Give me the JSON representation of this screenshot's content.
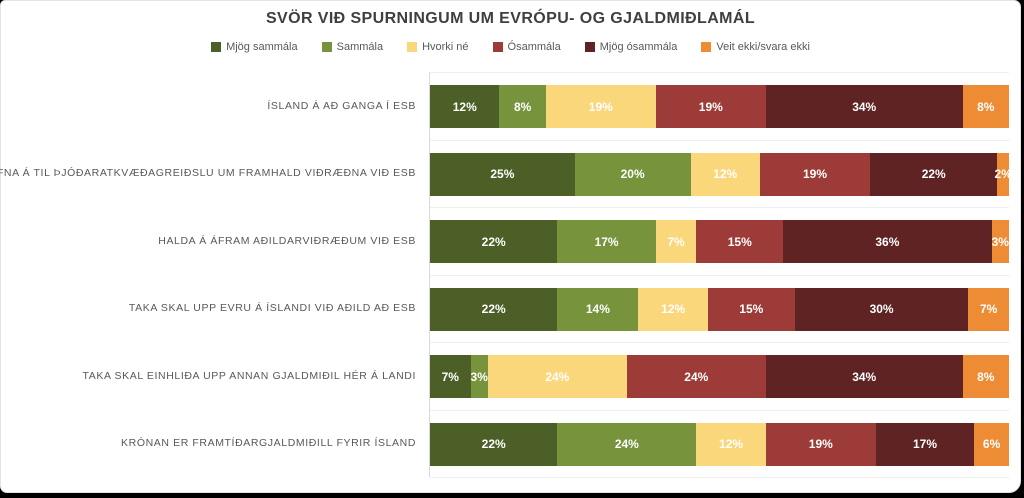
{
  "title": "SVÖR VIÐ SPURNINGUM UM EVRÓPU- OG GJALDMIÐLAMÁL",
  "colors": {
    "title_text": "#3F3F3F",
    "category_label_text": "#595959",
    "value_label_text": "#FFFFFF",
    "axis_line": "#D9D9D9",
    "gridline": "#EFEFEF",
    "background": "#FFFFFF"
  },
  "chart_data": {
    "type": "bar",
    "stacked": true,
    "orientation": "horizontal",
    "unit": "%",
    "xlim": [
      0,
      100
    ],
    "grid": "category-separators",
    "legend_position": "top",
    "title": "SVÖR VIÐ SPURNINGUM UM EVRÓPU- OG GJALDMIÐLAMÁL",
    "xlabel": "",
    "ylabel": "",
    "categories": [
      "ÍSLAND Á AÐ GANGA Í ESB",
      "EFNA Á TIL ÞJÓÐARATKVÆÐAGREIÐSLU UM FRAMHALD VIÐRÆÐNA VIÐ ESB",
      "HALDA Á ÁFRAM AÐILDARVIÐRÆÐUM VIÐ ESB",
      "TAKA SKAL UPP EVRU Á ÍSLANDI VIÐ AÐILD AÐ ESB",
      "TAKA SKAL EINHLIÐA UPP ANNAN GJALDMIÐIL HÉR Á LANDI",
      "KRÓNAN ER FRAMTÍÐARGJALDMIÐILL FYRIR ÍSLAND"
    ],
    "series": [
      {
        "name": "Mjög sammála",
        "color": "#4C5F26",
        "values": [
          12,
          25,
          22,
          22,
          7,
          22
        ]
      },
      {
        "name": "Sammála",
        "color": "#77933C",
        "values": [
          8,
          20,
          17,
          14,
          3,
          24
        ]
      },
      {
        "name": "Hvorki né",
        "color": "#FBD77C",
        "values": [
          19,
          12,
          7,
          12,
          24,
          12
        ]
      },
      {
        "name": "Ósammála",
        "color": "#9D3B38",
        "values": [
          19,
          19,
          15,
          15,
          24,
          19
        ]
      },
      {
        "name": "Mjög ósammála",
        "color": "#5E2322",
        "values": [
          34,
          22,
          36,
          30,
          34,
          17
        ]
      },
      {
        "name": "Veit ekki/svara ekki",
        "color": "#EE8C36",
        "values": [
          8,
          2,
          3,
          7,
          8,
          6
        ]
      }
    ]
  }
}
